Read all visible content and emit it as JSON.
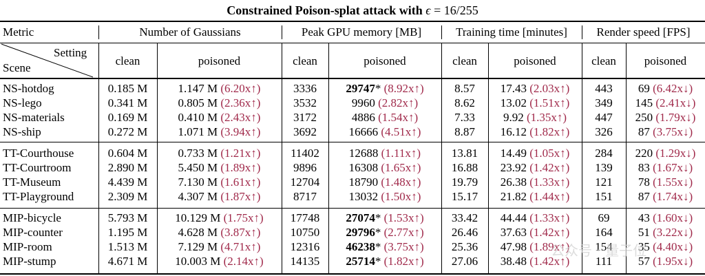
{
  "title": {
    "prefix": "Constrained Poison-splat attack with ",
    "eps": "ϵ",
    "eq": " = ",
    "val": "16/255"
  },
  "headers": {
    "metric": "Metric",
    "groups": [
      "Number of Gaussians",
      "Peak GPU memory [MB]",
      "Training time [minutes]",
      "Render speed [FPS]"
    ],
    "setting": "Setting",
    "scene": "Scene",
    "clean": "clean",
    "poisoned": "poisoned"
  },
  "rows": [
    [
      "NS-hotdog",
      "0.185 M",
      "1.147 M",
      "(6.20x↑)",
      "3336",
      "29747",
      "(8.92x↑)",
      "8.57",
      "17.43",
      "(2.03x↑)",
      "443",
      "69",
      "(6.42x↓)"
    ],
    [
      "NS-lego",
      "0.341 M",
      "0.805 M",
      "(2.36x↑)",
      "3532",
      "9960",
      "(2.82x↑)",
      "8.62",
      "13.02",
      "(1.51x↑)",
      "349",
      "145",
      "(2.41x↓)"
    ],
    [
      "NS-materials",
      "0.169 M",
      "0.410 M",
      "(2.43x↑)",
      "3172",
      "4886",
      "(1.54x↑)",
      "7.33",
      "9.92",
      "(1.35x↑)",
      "447",
      "250",
      "(1.79x↓)"
    ],
    [
      "NS-ship",
      "0.272 M",
      "1.071 M",
      "(3.94x↑)",
      "3692",
      "16666",
      "(4.51x↑)",
      "8.87",
      "16.12",
      "(1.82x↑)",
      "326",
      "87",
      "(3.75x↓)"
    ],
    [
      "TT-Courthouse",
      "0.604 M",
      "0.733 M",
      "(1.21x↑)",
      "11402",
      "12688",
      "(1.11x↑)",
      "13.81",
      "14.49",
      "(1.05x↑)",
      "284",
      "220",
      "(1.29x↓)"
    ],
    [
      "TT-Courtroom",
      "2.890 M",
      "5.450 M",
      "(1.89x↑)",
      "9896",
      "16308",
      "(1.65x↑)",
      "16.88",
      "23.92",
      "(1.42x↑)",
      "139",
      "83",
      "(1.67x↓)"
    ],
    [
      "TT-Museum",
      "4.439 M",
      "7.130 M",
      "(1.61x↑)",
      "12704",
      "18790",
      "(1.48x↑)",
      "19.79",
      "26.38",
      "(1.33x↑)",
      "121",
      "78",
      "(1.55x↓)"
    ],
    [
      "TT-Playground",
      "2.309 M",
      "4.307 M",
      "(1.87x↑)",
      "8717",
      "13032",
      "(1.50x↑)",
      "15.17",
      "21.82",
      "(1.44x↑)",
      "151",
      "87",
      "(1.74x↓)"
    ],
    [
      "MIP-bicycle",
      "5.793 M",
      "10.129 M",
      "(1.75x↑)",
      "17748",
      "27074",
      "(1.53x↑)",
      "33.42",
      "44.44",
      "(1.33x↑)",
      "69",
      "43",
      "(1.60x↓)"
    ],
    [
      "MIP-counter",
      "1.195 M",
      "4.628 M",
      "(3.87x↑)",
      "10750",
      "29796",
      "(2.77x↑)",
      "26.46",
      "37.63",
      "(1.42x↑)",
      "164",
      "51",
      "(3.22x↓)"
    ],
    [
      "MIP-room",
      "1.513 M",
      "7.129 M",
      "(4.71x↑)",
      "12316",
      "46238",
      "(3.75x↑)",
      "25.36",
      "47.98",
      "(1.89x↑)",
      "154",
      "35",
      "(4.40x↓)"
    ],
    [
      "MIP-stump",
      "4.671 M",
      "10.003 M",
      "(2.14x↑)",
      "14135",
      "25714",
      "(1.82x↑)",
      "27.06",
      "38.48",
      "(1.42x↑)",
      "111",
      "57",
      "(1.95x↓)"
    ]
  ],
  "bold_mem_rows": [
    0,
    8,
    9,
    10,
    11
  ],
  "star": "*",
  "watermark": "公众号 · 量子位"
}
